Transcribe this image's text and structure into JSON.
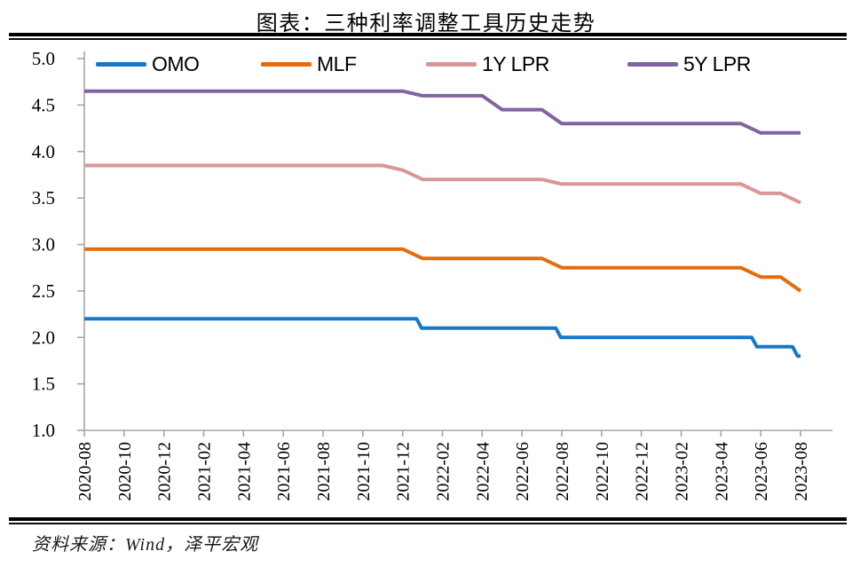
{
  "page": {
    "title": "图表：三种利率调整工具历史走势",
    "source": "资料来源：Wind，泽平宏观"
  },
  "legend": {
    "items": [
      "OMO",
      "MLF",
      "1Y LPR",
      "5Y LPR"
    ],
    "position": "top"
  },
  "chart_data": {
    "type": "line",
    "title": "图表：三种利率调整工具历史走势",
    "xlabel": "",
    "ylabel": "",
    "x_unit": "months since 2020-08 (monthly series, 2020-08 = 0, 2023-08 = 36)",
    "x_tick_labels": [
      "2020-08",
      "2020-10",
      "2020-12",
      "2021-02",
      "2021-04",
      "2021-06",
      "2021-08",
      "2021-10",
      "2021-12",
      "2022-02",
      "2022-04",
      "2022-06",
      "2022-08",
      "2022-10",
      "2022-12",
      "2023-02",
      "2023-04",
      "2023-06",
      "2023-08"
    ],
    "y_ticks": [
      5.0,
      4.5,
      4.0,
      3.5,
      3.0,
      2.5,
      2.0,
      1.5,
      1.0
    ],
    "y_tick_labels": [
      "5.0",
      "4.5",
      "4.0",
      "3.5",
      "3.0",
      "2.5",
      "2.0",
      "1.5",
      "1.0"
    ],
    "ylim": [
      1.0,
      5.0
    ],
    "grid": false,
    "axis_color": "#A6A6A6",
    "series": [
      {
        "name": "OMO",
        "color": "#1878C8",
        "style": "step",
        "points": [
          [
            0,
            2.2
          ],
          [
            16.7,
            2.2
          ],
          [
            16.95,
            2.1
          ],
          [
            23.7,
            2.1
          ],
          [
            23.95,
            2.0
          ],
          [
            33.55,
            2.0
          ],
          [
            33.8,
            1.9
          ],
          [
            35.6,
            1.9
          ],
          [
            35.85,
            1.8
          ],
          [
            36,
            1.8
          ]
        ],
        "rate_levels": [
          {
            "from": "2020-08",
            "to": "2021-12",
            "value": 2.2
          },
          {
            "from": "2022-01",
            "to": "2022-07",
            "value": 2.1
          },
          {
            "from": "2022-08",
            "to": "2023-05",
            "value": 2.0
          },
          {
            "from": "2023-06",
            "to": "2023-07",
            "value": 1.9
          },
          {
            "from": "2023-08",
            "to": "2023-08",
            "value": 1.8
          }
        ]
      },
      {
        "name": "MLF",
        "color": "#E46C0A",
        "style": "ramp",
        "points": [
          [
            0,
            2.95
          ],
          [
            16,
            2.95
          ],
          [
            17,
            2.85
          ],
          [
            23,
            2.85
          ],
          [
            24,
            2.75
          ],
          [
            33,
            2.75
          ],
          [
            34,
            2.65
          ],
          [
            35,
            2.65
          ],
          [
            36,
            2.5
          ]
        ],
        "rate_levels": [
          {
            "from": "2020-08",
            "to": "2021-12",
            "value": 2.95
          },
          {
            "from": "2022-01",
            "to": "2022-07",
            "value": 2.85
          },
          {
            "from": "2022-08",
            "to": "2023-05",
            "value": 2.75
          },
          {
            "from": "2023-06",
            "to": "2023-07",
            "value": 2.65
          },
          {
            "from": "2023-08",
            "to": "2023-08",
            "value": 2.5
          }
        ]
      },
      {
        "name": "1Y LPR",
        "color": "#D99694",
        "style": "ramp",
        "points": [
          [
            0,
            3.85
          ],
          [
            15,
            3.85
          ],
          [
            16,
            3.8
          ],
          [
            17,
            3.7
          ],
          [
            23,
            3.7
          ],
          [
            24,
            3.65
          ],
          [
            33,
            3.65
          ],
          [
            34,
            3.55
          ],
          [
            35,
            3.55
          ],
          [
            36,
            3.45
          ]
        ],
        "rate_levels": [
          {
            "from": "2020-08",
            "to": "2021-11",
            "value": 3.85
          },
          {
            "from": "2021-12",
            "to": "2021-12",
            "value": 3.8
          },
          {
            "from": "2022-01",
            "to": "2022-07",
            "value": 3.7
          },
          {
            "from": "2022-08",
            "to": "2023-05",
            "value": 3.65
          },
          {
            "from": "2023-06",
            "to": "2023-07",
            "value": 3.55
          },
          {
            "from": "2023-08",
            "to": "2023-08",
            "value": 3.45
          }
        ]
      },
      {
        "name": "5Y LPR",
        "color": "#8064A2",
        "style": "ramp",
        "points": [
          [
            0,
            4.65
          ],
          [
            16,
            4.65
          ],
          [
            17,
            4.6
          ],
          [
            20,
            4.6
          ],
          [
            21,
            4.45
          ],
          [
            23,
            4.45
          ],
          [
            24,
            4.3
          ],
          [
            33,
            4.3
          ],
          [
            34,
            4.2
          ],
          [
            36,
            4.2
          ]
        ],
        "rate_levels": [
          {
            "from": "2020-08",
            "to": "2021-12",
            "value": 4.65
          },
          {
            "from": "2022-01",
            "to": "2022-04",
            "value": 4.6
          },
          {
            "from": "2022-05",
            "to": "2022-07",
            "value": 4.45
          },
          {
            "from": "2022-08",
            "to": "2023-05",
            "value": 4.3
          },
          {
            "from": "2023-06",
            "to": "2023-08",
            "value": 4.2
          }
        ]
      }
    ]
  }
}
